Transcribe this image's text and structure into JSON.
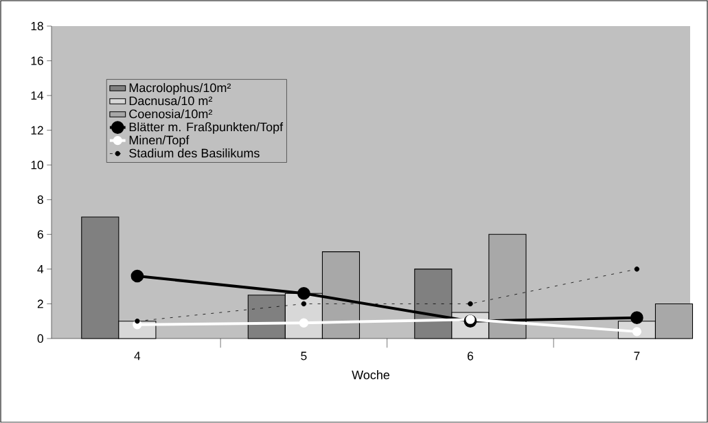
{
  "chart_data": {
    "type": "bar",
    "categories": [
      "4",
      "5",
      "6",
      "7"
    ],
    "xlabel": "Woche",
    "ylim": [
      0,
      18
    ],
    "yticks": [
      0,
      2,
      4,
      6,
      8,
      10,
      12,
      14,
      16,
      18
    ],
    "grid": false,
    "legend": "top left",
    "series": [
      {
        "name": "Macrolophus/10m²",
        "color": "#808080",
        "values": [
          7,
          2.5,
          4,
          null
        ]
      },
      {
        "name": "Dacnusa/10 m²",
        "color": "#d8d8d8",
        "values": [
          1,
          2.6,
          1.5,
          1
        ]
      },
      {
        "name": "Coenosia/10m²",
        "color": "#a8a8a8",
        "values": [
          null,
          5,
          6,
          2
        ]
      },
      {
        "name": "Blätter m. Fraßpunkten/Topf",
        "type": "line",
        "color": "#000000",
        "marker": "circle",
        "line_style": "solid",
        "values": [
          3.6,
          2.6,
          1.0,
          1.2
        ]
      },
      {
        "name": "Minen/Topf",
        "type": "line",
        "color": "#ffffff",
        "marker": "circle",
        "line_style": "solid",
        "values": [
          0.8,
          0.9,
          1.1,
          0.4
        ]
      },
      {
        "name": "Stadium des Basilikums",
        "type": "line",
        "color": "#000000",
        "marker": "circle",
        "line_style": "dashed",
        "values": [
          1,
          2,
          2,
          4
        ]
      }
    ]
  }
}
